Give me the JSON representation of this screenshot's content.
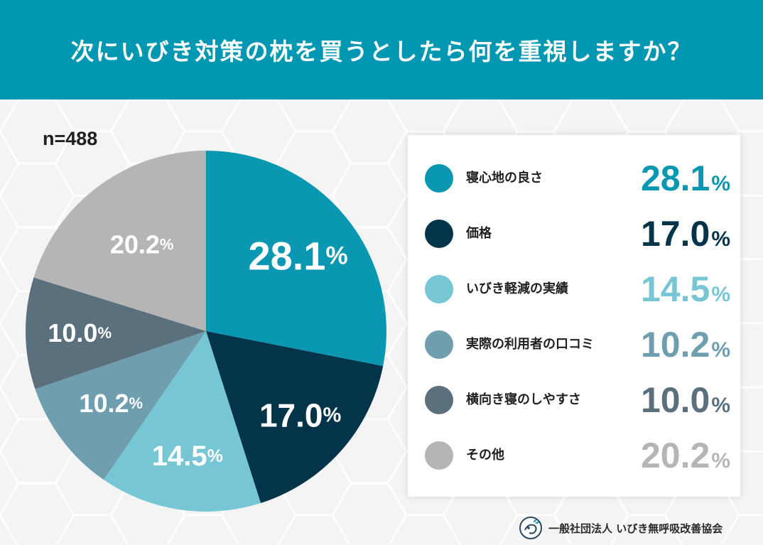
{
  "header": {
    "title": "次にいびき対策の枕を買うとしたら何を重視しますか？"
  },
  "sample_size": "n=488",
  "percent_sign": "%",
  "chart_data": {
    "type": "pie",
    "title": "次にいびき対策の枕を買うとしたら何を重視しますか？",
    "n": 488,
    "unit": "%",
    "slices": [
      {
        "label": "寝心地の良さ",
        "value": 28.1,
        "value_text": "28.1",
        "color": "#0a97b2",
        "legend_value_color": "#0a97b2"
      },
      {
        "label": "価格",
        "value": 17.0,
        "value_text": "17.0",
        "color": "#03344a",
        "legend_value_color": "#03344a"
      },
      {
        "label": "いびき軽減の実績",
        "value": 14.5,
        "value_text": "14.5",
        "color": "#76c6d5",
        "legend_value_color": "#76c6d5"
      },
      {
        "label": "実際の利用者の口コミ",
        "value": 10.2,
        "value_text": "10.2",
        "color": "#6f9eaf",
        "legend_value_color": "#6f9eaf"
      },
      {
        "label": "横向き寝のしやすさ",
        "value": 10.0,
        "value_text": "10.0",
        "color": "#5b707d",
        "legend_value_color": "#5b707d"
      },
      {
        "label": "その他",
        "value": 20.2,
        "value_text": "20.2",
        "color": "#b5b5b6",
        "legend_value_color": "#b5b5b6"
      }
    ]
  },
  "footer": {
    "organization": "一般社団法人 いびき無呼吸改善協会"
  }
}
